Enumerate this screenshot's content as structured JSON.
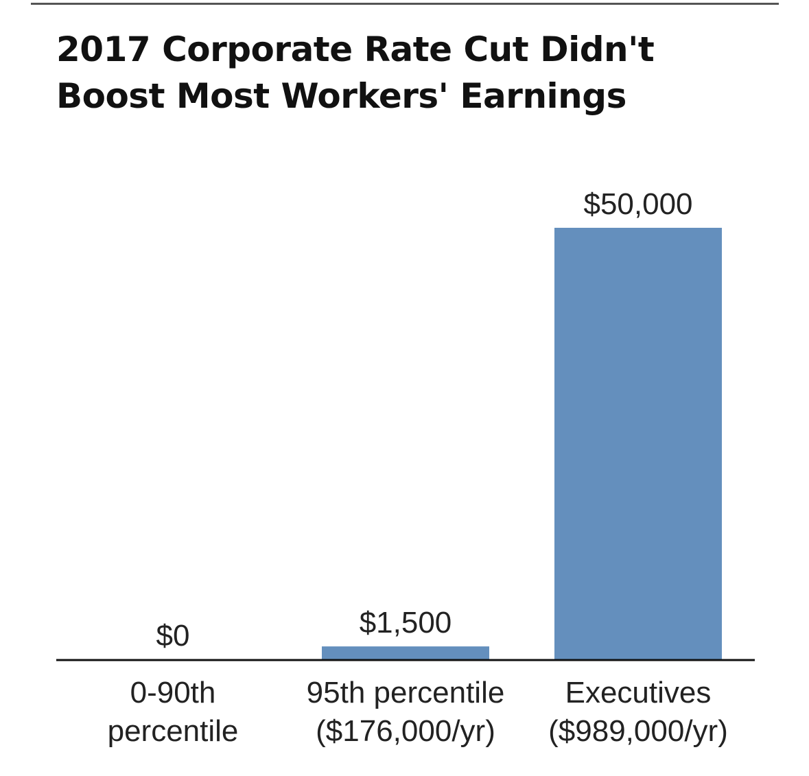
{
  "title_lines": [
    "2017 Corporate Rate Cut Didn't",
    "Boost Most Workers' Earnings"
  ],
  "chart_data": {
    "type": "bar",
    "title": "2017 Corporate Rate Cut Didn't Boost Most Workers' Earnings",
    "categories": [
      [
        "0-90th",
        "percentile"
      ],
      [
        "95th percentile",
        "($176,000/yr)"
      ],
      [
        "Executives",
        "($989,000/yr)"
      ]
    ],
    "values": [
      0,
      1500,
      50000
    ],
    "value_labels": [
      "$0",
      "$1,500",
      "$50,000"
    ],
    "ylim": [
      0,
      50000
    ],
    "grid": false,
    "legend": "none",
    "bar_color": "#648fbd",
    "baseline_color": "#111111",
    "text_color": "#222222"
  }
}
